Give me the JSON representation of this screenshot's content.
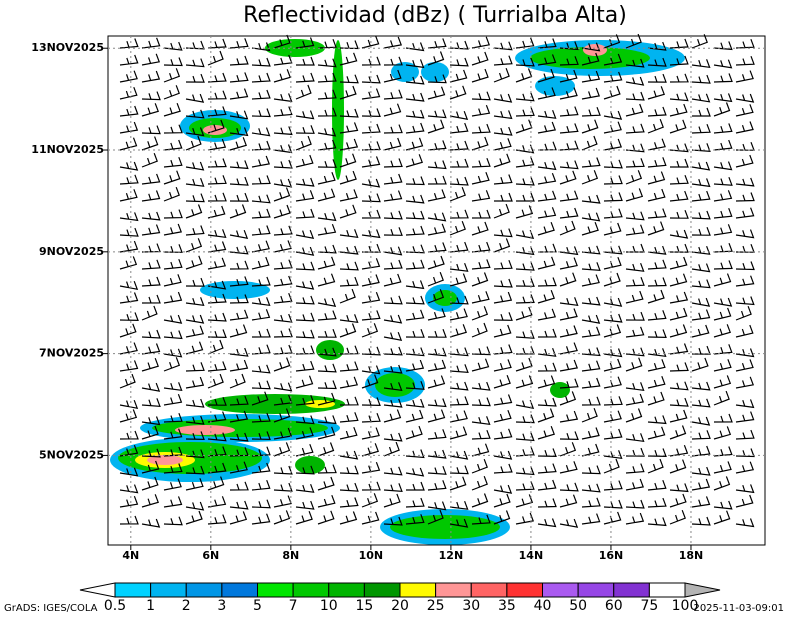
{
  "chart_data": {
    "type": "hovmoller",
    "title": "Reflectividad (dBz) ( Turrialba Alta)",
    "xlim": [
      3.43,
      19.85
    ],
    "xticks": [
      {
        "value": 4,
        "label": "4N"
      },
      {
        "value": 6,
        "label": "6N"
      },
      {
        "value": 8,
        "label": "8N"
      },
      {
        "value": 10,
        "label": "10N"
      },
      {
        "value": 12,
        "label": "12N"
      },
      {
        "value": 14,
        "label": "14N"
      },
      {
        "value": 16,
        "label": "16N"
      },
      {
        "value": 18,
        "label": "18N"
      }
    ],
    "ylim": [
      3.24,
      13.24
    ],
    "yticks": [
      {
        "value": 5,
        "label": "5NOV2025"
      },
      {
        "value": 7,
        "label": "7NOV2025"
      },
      {
        "value": 9,
        "label": "9NOV2025"
      },
      {
        "value": 11,
        "label": "11NOV2025"
      },
      {
        "value": 13,
        "label": "13NOV2025"
      }
    ],
    "grid": true,
    "colorbar": {
      "levels": [
        0.5,
        1,
        2,
        3,
        5,
        7,
        10,
        15,
        20,
        25,
        30,
        35,
        40,
        50,
        60,
        75,
        100
      ],
      "colors": [
        "#ffffff",
        "#00d2ff",
        "#00b4f0",
        "#0096e6",
        "#0078dc",
        "#00e600",
        "#00c800",
        "#00b400",
        "#009600",
        "#fffa00",
        "#ff9696",
        "#ff6464",
        "#ff3232",
        "#aa5af0",
        "#9646e6",
        "#8232d2",
        "#ffffff",
        "#b4b4b4"
      ]
    },
    "footer_left": "GrADS: IGES/COLA",
    "footer_right": "2025-11-03-09:01"
  }
}
